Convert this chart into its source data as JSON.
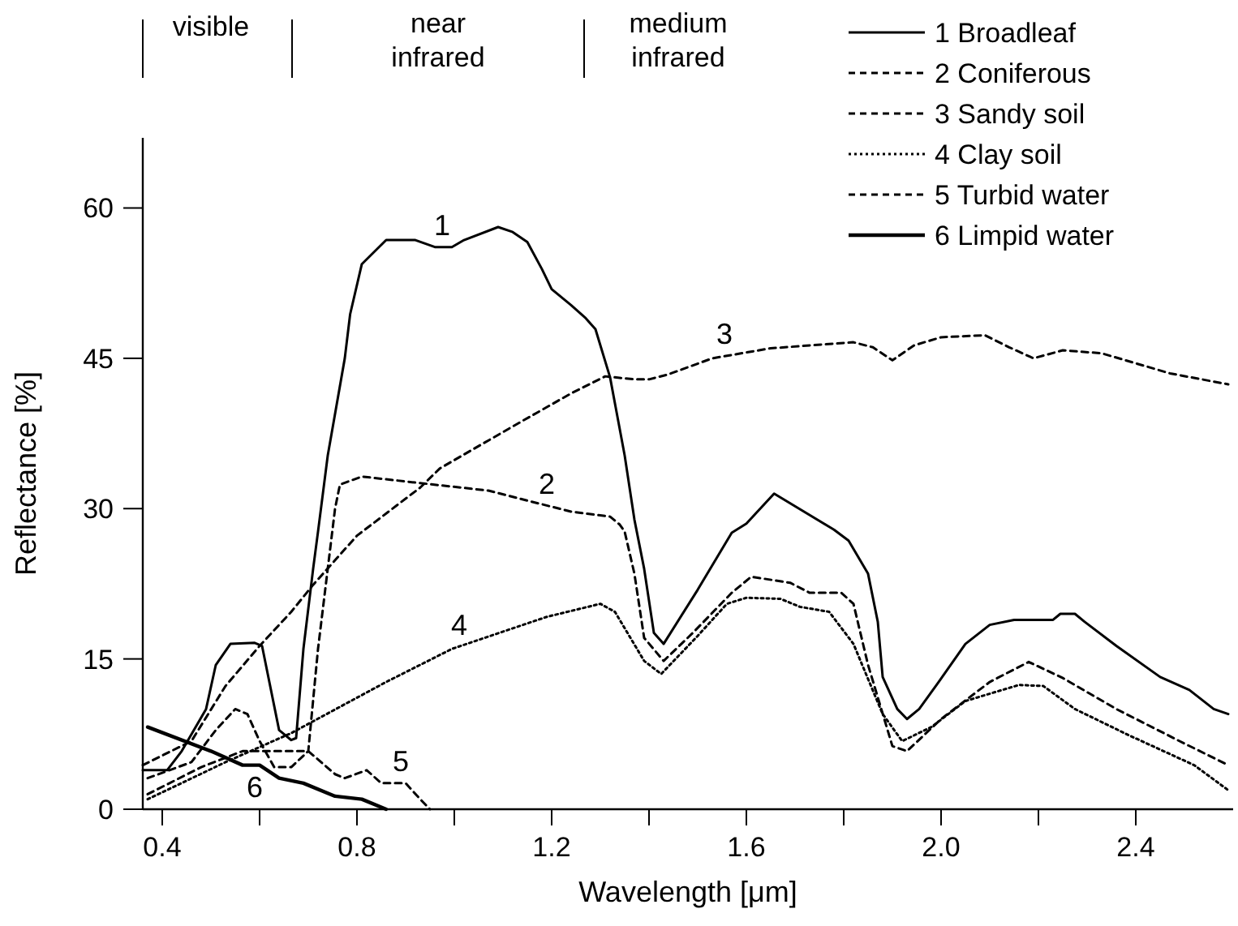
{
  "chart_data": {
    "type": "line",
    "xlabel": "Wavelength [μm]",
    "ylabel": "Reflectance [%]",
    "xlim": [
      0.36,
      2.6
    ],
    "ylim": [
      0,
      67
    ],
    "xticks": [
      0.4,
      {
        "value": 0.6,
        "label": null
      },
      0.8,
      {
        "value": 1.0,
        "label": null
      },
      1.2,
      {
        "value": 1.4,
        "label": null
      },
      1.6,
      {
        "value": 1.8,
        "label": null
      },
      {
        "value": 2.0,
        "label": "2.0"
      },
      {
        "value": 2.2,
        "label": null
      },
      2.4
    ],
    "yticks": [
      0,
      15,
      30,
      45,
      60
    ],
    "grid": false,
    "legend": "top right",
    "annotations": [
      "visible",
      "near\ninfrared",
      "medium\ninfrared",
      {
        "text": "1",
        "x": 0.975,
        "y": 56.1
      },
      {
        "text": "2",
        "x": 1.19,
        "y": 30.3
      },
      {
        "text": "3",
        "x": 1.555,
        "y": 45.3
      },
      {
        "text": "4",
        "x": 1.01,
        "y": 16.2
      },
      {
        "text": "5",
        "x": 0.89,
        "y": 2.6
      },
      {
        "text": "6",
        "x": 0.59,
        "y": 4.4
      }
    ],
    "series": [
      {
        "name": "1 Broadleaf",
        "color": "#000000",
        "line_style": "solid",
        "x": [
          0.36,
          0.41,
          0.44,
          0.49,
          0.51,
          0.54,
          0.59,
          0.605,
          0.64,
          0.665,
          0.675,
          0.69,
          0.71,
          0.72,
          0.74,
          0.775,
          0.786,
          0.81,
          0.86,
          0.92,
          0.96,
          0.995,
          1.02,
          1.09,
          1.12,
          1.15,
          1.18,
          1.2,
          1.24,
          1.27,
          1.29,
          1.32,
          1.35,
          1.37,
          1.39,
          1.41,
          1.43,
          1.5,
          1.57,
          1.6,
          1.657,
          1.78,
          1.81,
          1.85,
          1.87,
          1.88,
          1.91,
          1.93,
          1.955,
          1.995,
          2.05,
          2.1,
          2.15,
          2.23,
          2.245,
          2.275,
          2.295,
          2.36,
          2.45,
          2.51,
          2.56,
          2.59
        ],
        "values": [
          3.9,
          3.9,
          5.8,
          10,
          14.4,
          16.5,
          16.6,
          16.3,
          7.9,
          6.9,
          7.1,
          16,
          24,
          27.7,
          35.3,
          45,
          49.4,
          54.4,
          56.8,
          56.8,
          56.1,
          56.1,
          56.8,
          58.1,
          57.6,
          56.6,
          53.9,
          51.9,
          50.3,
          49,
          47.9,
          43.1,
          35.3,
          28.9,
          24,
          17.6,
          16.5,
          21.9,
          27.6,
          28.5,
          31.5,
          27.9,
          26.8,
          23.5,
          18.7,
          13.2,
          10,
          9,
          10,
          12.7,
          16.5,
          18.4,
          18.9,
          18.9,
          19.5,
          19.5,
          18.7,
          16.3,
          13.2,
          11.9,
          10,
          9.5
        ]
      },
      {
        "name": "2 Coniferous",
        "color": "#000000",
        "line_style": "dashed",
        "x": [
          0.37,
          0.46,
          0.51,
          0.55,
          0.575,
          0.6,
          0.63,
          0.665,
          0.7,
          0.72,
          0.74,
          0.755,
          0.765,
          0.81,
          0.92,
          1.07,
          1.15,
          1.24,
          1.32,
          1.34,
          1.35,
          1.37,
          1.39,
          1.43,
          1.49,
          1.57,
          1.61,
          1.69,
          1.73,
          1.795,
          1.82,
          1.85,
          1.9,
          1.93,
          2.0,
          2.1,
          2.18,
          2.25,
          2.36,
          2.49,
          2.59
        ],
        "values": [
          3.1,
          4.7,
          7.9,
          10,
          9.5,
          6.8,
          4.2,
          4.2,
          5.8,
          16,
          24,
          30,
          32.4,
          33.2,
          32.6,
          31.8,
          30.8,
          29.7,
          29.2,
          28.4,
          27.7,
          23.5,
          17.1,
          14.8,
          17.6,
          21.6,
          23.2,
          22.6,
          21.6,
          21.6,
          20.5,
          14.4,
          6.3,
          5.8,
          9,
          12.7,
          14.7,
          13.1,
          10,
          6.8,
          4.4
        ]
      },
      {
        "name": "3 Sandy soil",
        "color": "#000000",
        "line_style": "dashed",
        "x": [
          0.36,
          0.46,
          0.53,
          0.6,
          0.665,
          0.71,
          0.8,
          0.93,
          0.97,
          1.12,
          1.24,
          1.31,
          1.37,
          1.4,
          1.44,
          1.53,
          1.65,
          1.82,
          1.86,
          1.9,
          1.945,
          2.0,
          2.09,
          2.14,
          2.19,
          2.25,
          2.33,
          2.47,
          2.59
        ],
        "values": [
          4.4,
          6.8,
          12.3,
          16.3,
          19.7,
          22.4,
          27.3,
          32.1,
          34,
          38.2,
          41.5,
          43.2,
          42.9,
          42.9,
          43.4,
          45,
          46,
          46.6,
          46.1,
          44.8,
          46.3,
          47.1,
          47.3,
          46.1,
          45,
          45.8,
          45.5,
          43.5,
          42.4
        ]
      },
      {
        "name": "4 Clay soil",
        "color": "#000000",
        "line_style": "dotted",
        "x": [
          0.37,
          0.53,
          0.665,
          0.86,
          0.995,
          1.19,
          1.3,
          1.33,
          1.39,
          1.425,
          1.5,
          1.56,
          1.6,
          1.67,
          1.71,
          1.77,
          1.82,
          1.88,
          1.92,
          1.98,
          2.05,
          2.16,
          2.21,
          2.275,
          2.385,
          2.52,
          2.59
        ],
        "values": [
          1,
          4.7,
          7.6,
          12.7,
          16,
          19.2,
          20.5,
          19.7,
          14.8,
          13.5,
          17.3,
          20.5,
          21.1,
          21,
          20.2,
          19.7,
          16.5,
          9.5,
          6.8,
          8.2,
          10.8,
          12.4,
          12.3,
          10,
          7.4,
          4.4,
          1.9
        ]
      },
      {
        "name": "5 Turbid water",
        "color": "#000000",
        "line_style": "dashed",
        "x": [
          0.37,
          0.48,
          0.565,
          0.64,
          0.7,
          0.755,
          0.775,
          0.82,
          0.85,
          0.9,
          0.93,
          0.95
        ],
        "values": [
          1.5,
          4.2,
          5.8,
          5.8,
          5.8,
          3.5,
          3.1,
          3.9,
          2.6,
          2.6,
          1.0,
          0
        ]
      },
      {
        "name": "6 Limpid water",
        "color": "#000000",
        "line_style": "solid",
        "x": [
          0.37,
          0.5,
          0.565,
          0.6,
          0.64,
          0.69,
          0.755,
          0.81,
          0.86
        ],
        "values": [
          8.2,
          5.8,
          4.4,
          4.4,
          3.1,
          2.6,
          1.3,
          1.0,
          0
        ]
      }
    ]
  }
}
